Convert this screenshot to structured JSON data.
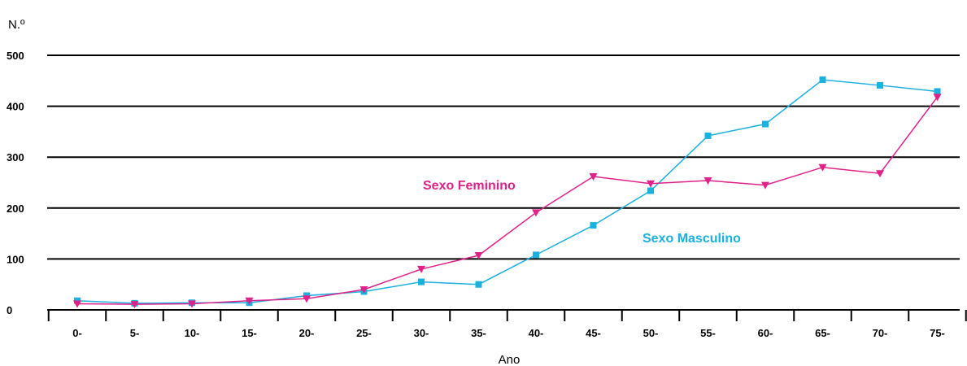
{
  "chart_data": {
    "type": "line",
    "title": "",
    "ylabel": "N.º",
    "xlabel": "Ano",
    "categories": [
      "0-",
      "5-",
      "10-",
      "15-",
      "20-",
      "25-",
      "30-",
      "35-",
      "40-",
      "45-",
      "50-",
      "55-",
      "60-",
      "65-",
      "70-",
      "75-"
    ],
    "ylim": [
      0,
      500
    ],
    "yticks": [
      0,
      100,
      200,
      300,
      400,
      500
    ],
    "grid": true,
    "series": [
      {
        "name": "Sexo Feminino",
        "color": "#e0218a",
        "marker": "triangle-down",
        "values": [
          12,
          11,
          12,
          18,
          22,
          40,
          80,
          107,
          191,
          262,
          248,
          254,
          245,
          280,
          268,
          418
        ]
      },
      {
        "name": "Sexo Masculino",
        "color": "#1ab0e0",
        "marker": "square",
        "values": [
          18,
          13,
          14,
          14,
          28,
          36,
          55,
          50,
          108,
          166,
          234,
          342,
          365,
          452,
          441,
          429
        ]
      }
    ]
  }
}
